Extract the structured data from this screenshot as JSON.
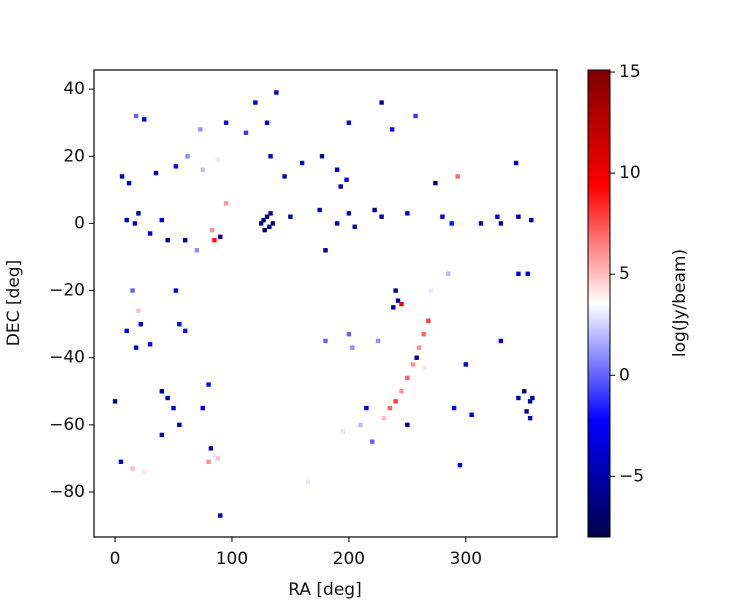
{
  "chart_data": {
    "type": "scatter",
    "x_label": "RA [deg]",
    "y_label": "DEC [deg]",
    "colorbar_label": "log(Jy/beam)",
    "colormap": "seismic",
    "xlim": [
      -18,
      378
    ],
    "xticks": [
      0,
      100,
      200,
      300
    ],
    "ylim": [
      -93.4,
      45.7
    ],
    "yticks": [
      40,
      20,
      0,
      {
        "value": -20,
        "label": "−20"
      },
      {
        "value": -40,
        "label": "−40"
      },
      {
        "value": -60,
        "label": "−60"
      },
      {
        "value": -80,
        "label": "−80"
      }
    ],
    "clim": [
      -8,
      15.1
    ],
    "cticks": [
      15,
      10,
      5,
      0,
      {
        "value": -5,
        "label": "−5"
      }
    ],
    "x": [
      120,
      138,
      228,
      257,
      18,
      25,
      73,
      95,
      112,
      130,
      200,
      237,
      62,
      88,
      133,
      177,
      190,
      193,
      198,
      145,
      6,
      12,
      35,
      52,
      75,
      160,
      293,
      343,
      274,
      95,
      20,
      17,
      10,
      40,
      45,
      60,
      30,
      127,
      130,
      132,
      128,
      135,
      125,
      133,
      150,
      175,
      190,
      200,
      205,
      222,
      228,
      250,
      280,
      288,
      313,
      327,
      330,
      345,
      356,
      85,
      83,
      70,
      90,
      180,
      15,
      20,
      10,
      22,
      30,
      55,
      60,
      52,
      18,
      240,
      242,
      245,
      238,
      285,
      270,
      345,
      353,
      330,
      200,
      203,
      180,
      225,
      268,
      264,
      260,
      255,
      250,
      245,
      240,
      235,
      230,
      258,
      250,
      265,
      345,
      350,
      355,
      352,
      357,
      355,
      300,
      290,
      295,
      40,
      45,
      50,
      40,
      55,
      75,
      80,
      82,
      85,
      80,
      88,
      0,
      5,
      15,
      25,
      90,
      165,
      210,
      220,
      195,
      305,
      215
    ],
    "y": [
      36,
      39,
      36,
      32,
      32,
      31,
      28,
      30,
      27,
      30,
      30,
      28,
      20,
      19,
      20,
      20,
      16,
      11,
      13,
      14,
      14,
      12,
      15,
      17,
      16,
      18,
      14,
      18,
      12,
      6,
      3,
      0,
      1,
      1,
      -5,
      -5,
      -3,
      1,
      2,
      -1,
      -2,
      0,
      0,
      3,
      2,
      4,
      0,
      3,
      -1,
      4,
      2,
      3,
      2,
      0,
      0,
      2,
      0,
      2,
      1,
      -5,
      -2,
      -8,
      -4,
      -8,
      -20,
      -26,
      -32,
      -30,
      -36,
      -30,
      -32,
      -20,
      -37,
      -20,
      -23,
      -24,
      -25,
      -15,
      -20,
      -15,
      -15,
      -35,
      -33,
      -37,
      -35,
      -35,
      -29,
      -33,
      -37,
      -42,
      -46,
      -50,
      -53,
      -55,
      -58,
      -40,
      -60,
      -43,
      -52,
      -50,
      -53,
      -56,
      -52,
      -58,
      -42,
      -55,
      -72,
      -50,
      -52,
      -55,
      -63,
      -60,
      -55,
      -48,
      -67,
      -69,
      -71,
      -70,
      -53,
      -71,
      -73,
      -74,
      -87,
      -77,
      -60,
      -65,
      -62,
      -57,
      -55
    ],
    "c": [
      -3,
      -4,
      -5,
      -1,
      0,
      -3,
      1,
      -2,
      -1,
      -3,
      -3,
      -2,
      1,
      3,
      -5,
      -6,
      -4,
      -5,
      -3,
      -4,
      -5,
      -4,
      -4,
      -2,
      2,
      -3,
      7,
      -4,
      -6,
      6,
      -5,
      -4,
      -4,
      -3,
      -6,
      -5,
      -4,
      -7,
      -7,
      -6,
      -7,
      -6,
      -5,
      -6,
      -5,
      -4,
      -4,
      -5,
      -5,
      -6,
      -5,
      -4,
      -3,
      -2,
      -5,
      -4,
      -5,
      -5,
      -5,
      9,
      6,
      1,
      -5,
      -6,
      0,
      5,
      -3,
      -3,
      -2,
      -3,
      -2,
      -3,
      -4,
      -6,
      -5,
      10,
      -5,
      2,
      3,
      -3,
      -3,
      -4,
      0,
      1,
      0,
      1,
      8,
      7,
      6,
      6,
      7,
      6,
      8,
      7,
      5,
      -5,
      -6,
      4,
      -5,
      -6,
      -5,
      -6,
      -5,
      -5,
      -3,
      -2,
      -4,
      -6,
      -5,
      -4,
      -5,
      -5,
      -3,
      -2,
      -6,
      3,
      6,
      5,
      -6,
      -3,
      5,
      4,
      -5,
      3,
      2,
      0,
      3,
      -4,
      -4
    ]
  }
}
